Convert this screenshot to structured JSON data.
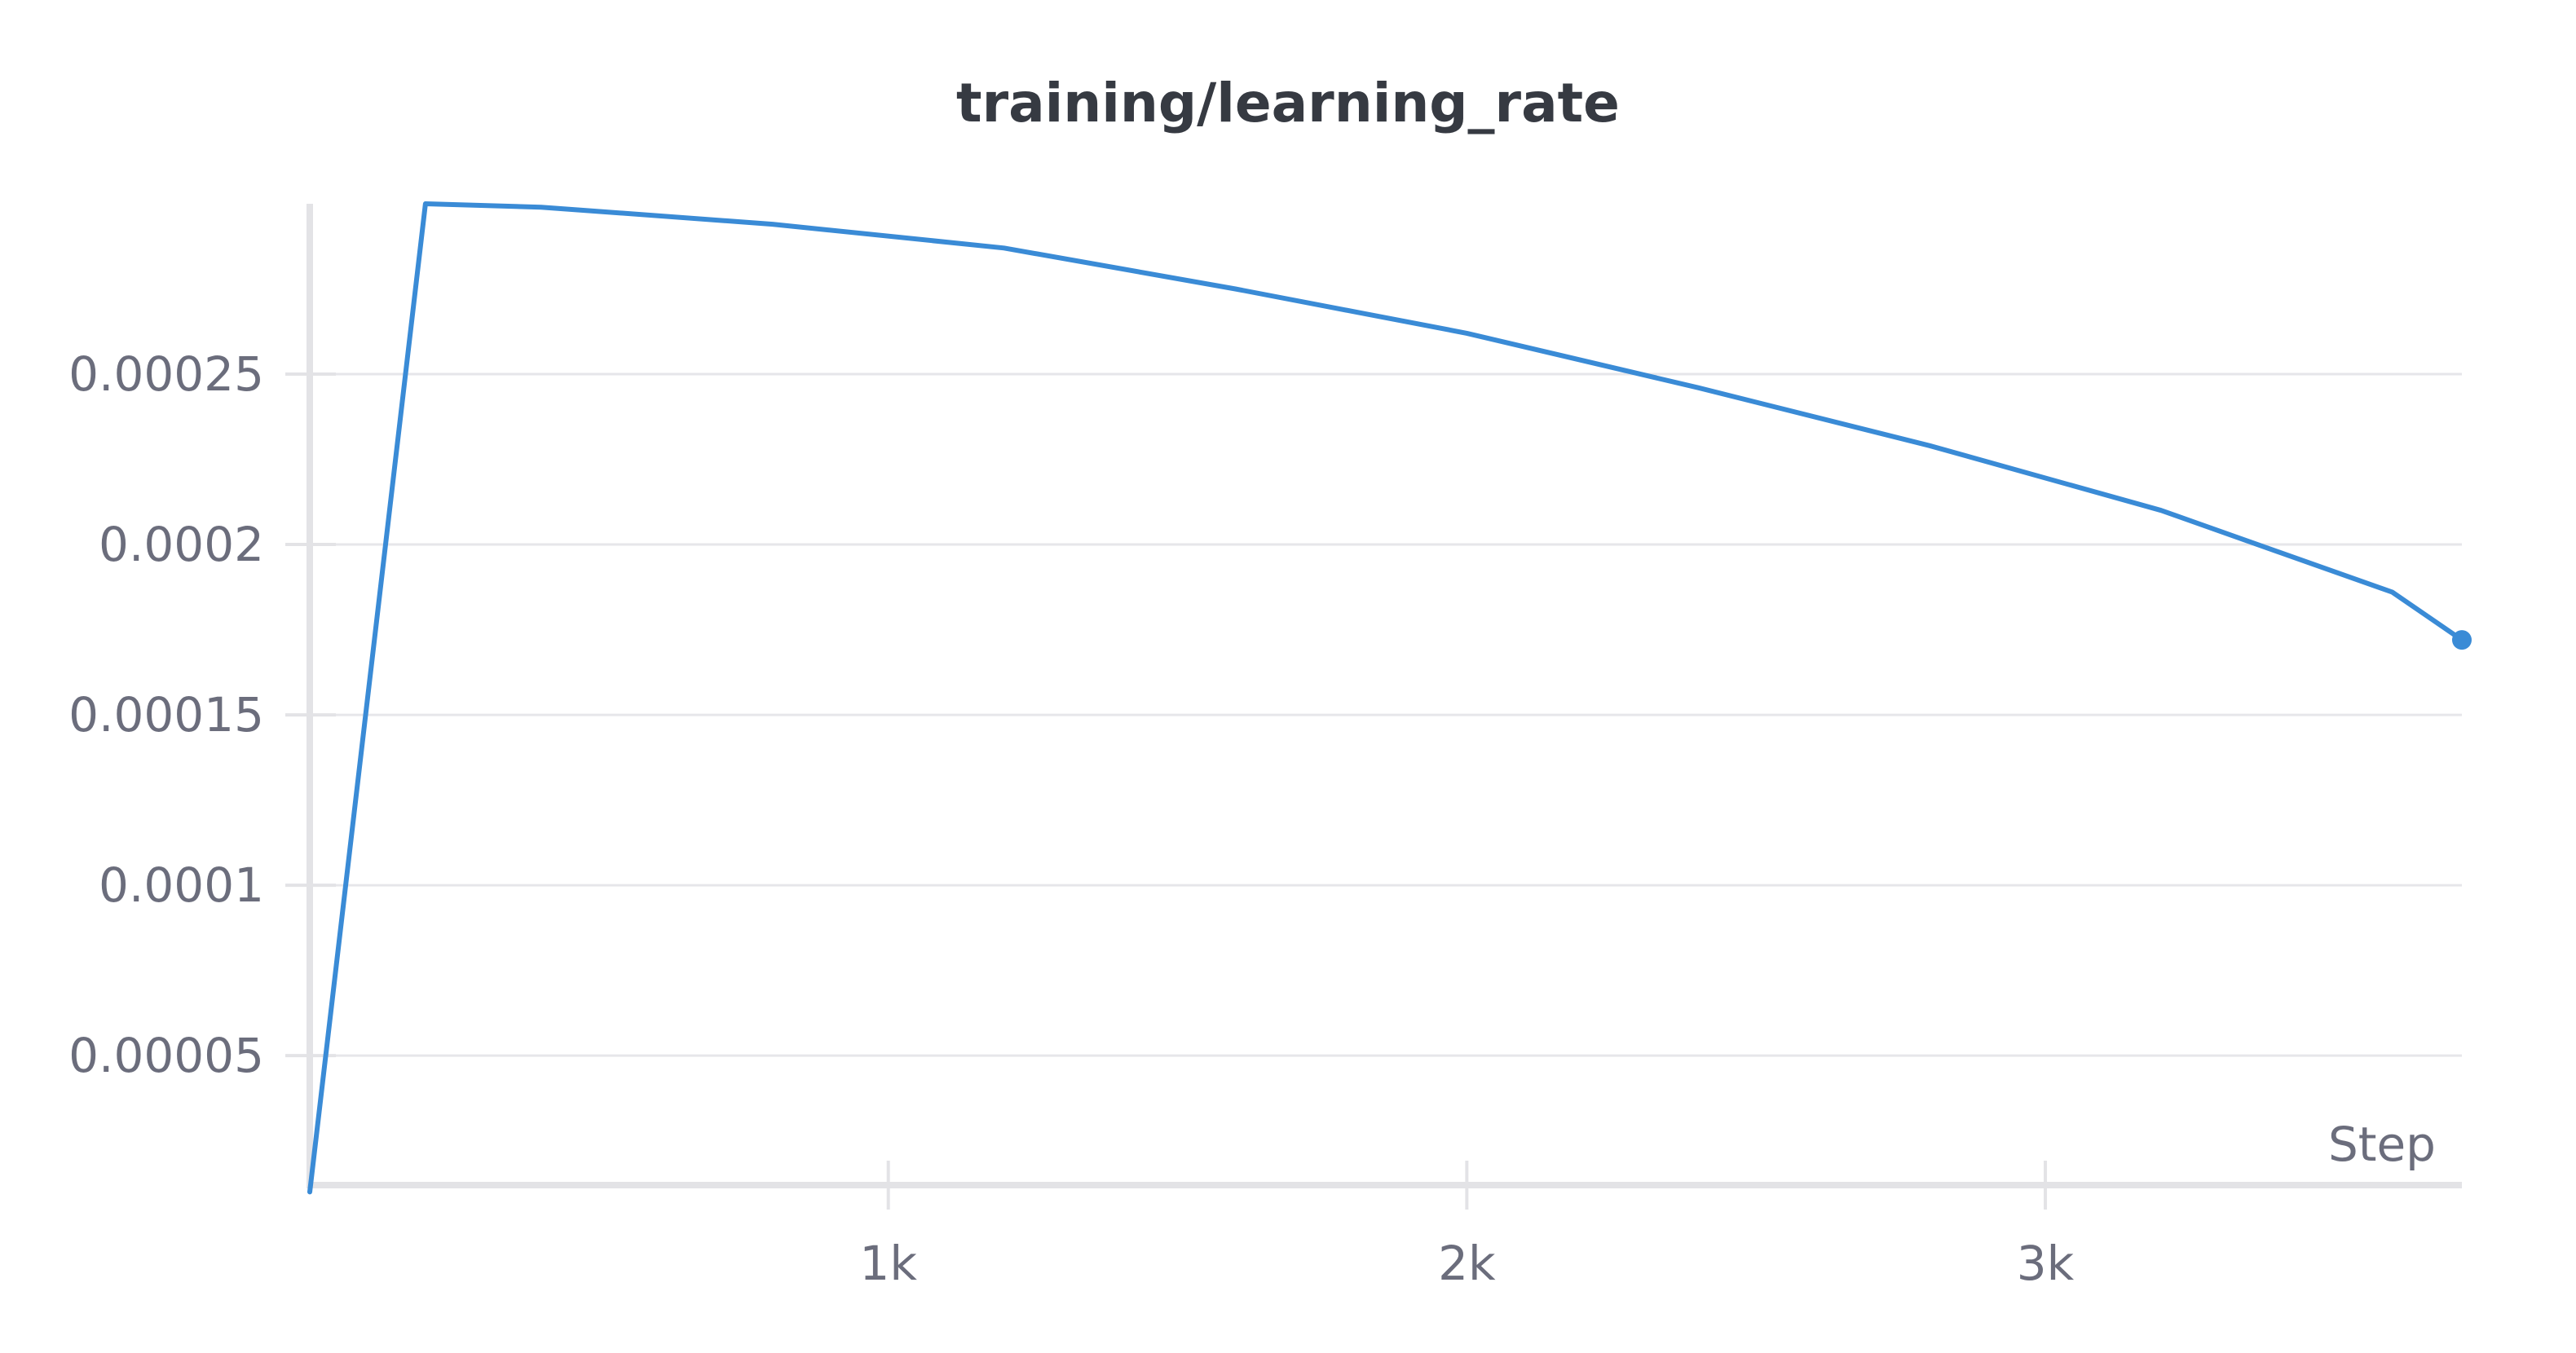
{
  "chart_data": {
    "type": "line",
    "title": "training/learning_rate",
    "xlabel": "Step",
    "ylabel": "",
    "xlim": [
      0,
      3720
    ],
    "ylim": [
      1.2e-05,
      0.0003
    ],
    "x_ticks": [
      {
        "value": 1000,
        "label": "1k"
      },
      {
        "value": 2000,
        "label": "2k"
      },
      {
        "value": 3000,
        "label": "3k"
      }
    ],
    "y_ticks": [
      {
        "value": 5e-05,
        "label": "0.00005"
      },
      {
        "value": 0.0001,
        "label": "0.0001"
      },
      {
        "value": 0.00015,
        "label": "0.00015"
      },
      {
        "value": 0.0002,
        "label": "0.0002"
      },
      {
        "value": 0.00025,
        "label": "0.00025"
      }
    ],
    "grid": true,
    "legend": "none",
    "color": "#3a8bd6",
    "series": [
      {
        "x": [
          0,
          200,
          400,
          800,
          1200,
          1600,
          2000,
          2400,
          2800,
          3200,
          3600,
          3720
        ],
        "y": [
          1e-05,
          0.0003,
          0.000299,
          0.000294,
          0.000287,
          0.000275,
          0.000262,
          0.000246,
          0.000229,
          0.00021,
          0.000186,
          0.000172
        ]
      }
    ]
  }
}
